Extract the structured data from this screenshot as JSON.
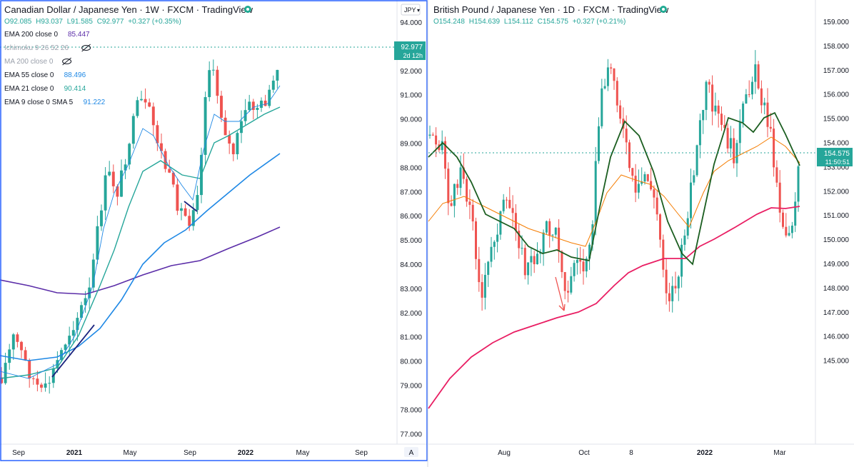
{
  "left": {
    "title": "Canadian Dollar / Japanese Yen · 1W · FXCM · TradingView",
    "ohlc": {
      "o": "O92.085",
      "h": "H93.037",
      "l": "L91.585",
      "c": "C92.977",
      "chg": "+0.327 (+0.35%)"
    },
    "indicators": [
      {
        "label": "EMA 200 close 0",
        "value": "85.447",
        "color": "#5b2da8",
        "hidden": false
      },
      {
        "label": "Ichimoku 9 26 52 26",
        "value": "",
        "color": "#9aa0ab",
        "hidden": true
      },
      {
        "label": "MA 200 close 0",
        "value": "",
        "color": "#9aa0ab",
        "hidden": true
      },
      {
        "label": "EMA 55 close 0",
        "value": "88.496",
        "color": "#1e88e5",
        "hidden": false
      },
      {
        "label": "EMA 21 close 0",
        "value": "90.414",
        "color": "#26a69a",
        "hidden": false
      },
      {
        "label": "EMA 9 close 0 SMA 5",
        "value": "91.222",
        "color": "#1e88e5",
        "hidden": false
      }
    ],
    "currency_button": "JPY",
    "price_label": "92.977",
    "countdown": "2d 12h",
    "auto_label": "A",
    "yticks": [
      "94.000",
      "93.000",
      "92.000",
      "91.000",
      "90.000",
      "89.000",
      "88.000",
      "87.000",
      "86.000",
      "85.000",
      "84.000",
      "83.000",
      "82.000",
      "81.000",
      "80.000",
      "79.000",
      "78.000",
      "77.000"
    ],
    "xticks": [
      "Sep",
      "2021",
      "May",
      "Sep",
      "2022",
      "May",
      "Sep"
    ]
  },
  "right": {
    "title": "British Pound / Japanese Yen · 1D · FXCM · TradingView",
    "ohlc": {
      "o": "O154.248",
      "h": "H154.639",
      "l": "L154.112",
      "c": "C154.575",
      "chg": "+0.327 (+0.21%)"
    },
    "price_label": "154.575",
    "countdown": "11:50:51",
    "yticks": [
      "159.000",
      "158.000",
      "157.000",
      "156.000",
      "155.000",
      "154.000",
      "153.000",
      "152.000",
      "151.000",
      "150.000",
      "149.000",
      "148.000",
      "147.000",
      "146.000",
      "145.000"
    ],
    "xticks": [
      "Aug",
      "Oct",
      "8",
      "2022",
      "Mar"
    ]
  },
  "colors": {
    "up": "#26a69a",
    "down": "#ef5350",
    "accent": "#2962ff",
    "text": "#131722",
    "muted": "#787b86"
  },
  "chart_data": [
    {
      "type": "candlestick",
      "title": "Canadian Dollar / Japanese Yen · 1W · FXCM · TradingView",
      "ylim": [
        76.5,
        94.6
      ],
      "x_ticks": [
        "Sep",
        "2021",
        "May",
        "Sep",
        "2022",
        "May",
        "Sep"
      ],
      "last_close": 92.977,
      "series": [
        {
          "name": "EMA 200 close 0",
          "last": 85.447
        },
        {
          "name": "EMA 55 close 0",
          "last": 88.496
        },
        {
          "name": "EMA 21 close 0",
          "last": 90.414
        },
        {
          "name": "EMA 9 close 0 SMA 5",
          "last": 91.222
        }
      ]
    },
    {
      "type": "candlestick",
      "title": "British Pound / Japanese Yen · 1D · FXCM · TradingView",
      "ylim": [
        144.6,
        159.4
      ],
      "x_ticks": [
        "Aug",
        "Oct",
        "8",
        "2022",
        "Mar"
      ],
      "last_close": 154.575,
      "ohlc_last": [
        154.248,
        154.639,
        154.112,
        154.575
      ]
    }
  ]
}
